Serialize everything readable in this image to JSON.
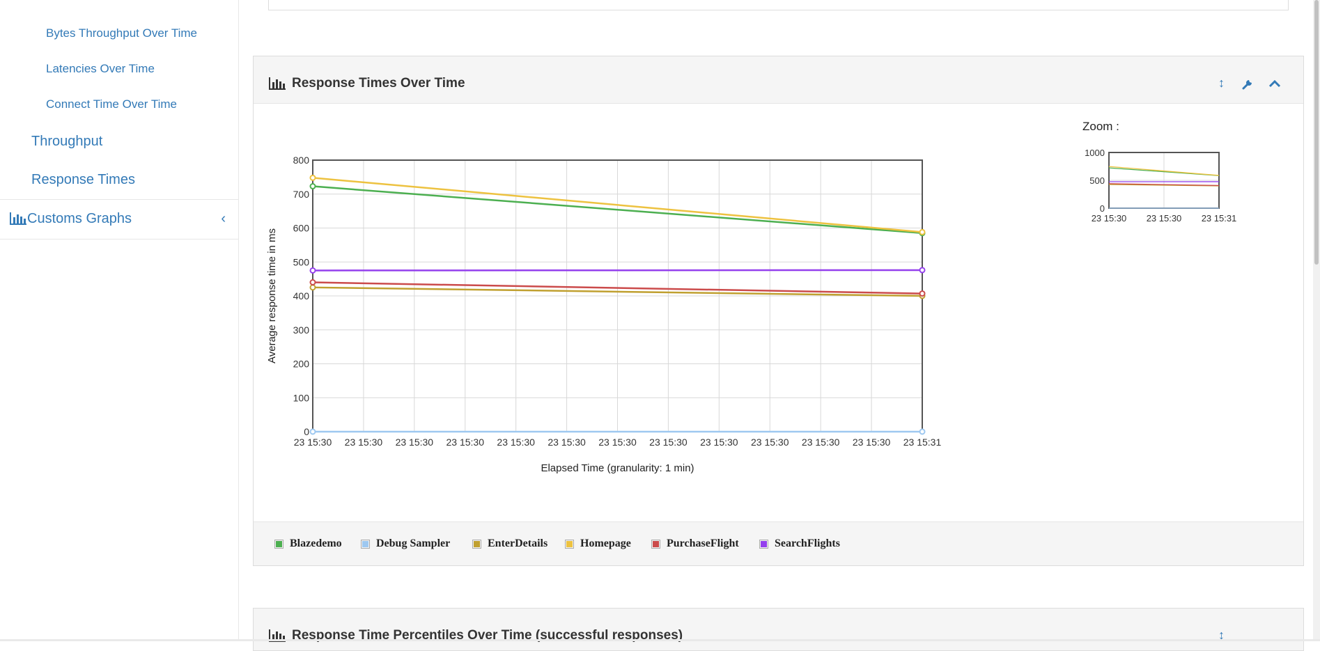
{
  "sidebar": {
    "sub_items": [
      "Bytes Throughput Over Time",
      "Latencies Over Time",
      "Connect Time Over Time"
    ],
    "items": [
      "Throughput",
      "Response Times"
    ],
    "custom": {
      "label": "Customs Graphs",
      "icon": "bar-chart-icon",
      "chevron": "‹"
    }
  },
  "panel": {
    "title": "Response Times Over Time",
    "tools": {
      "expand": "↕",
      "settings": "wrench-icon",
      "collapse": "chevron-up-icon"
    }
  },
  "panel2": {
    "title": "Response Time Percentiles Over Time (successful responses)"
  },
  "colors": {
    "link": "#337ab7",
    "Blazedemo": "#4caf50",
    "Debug Sampler": "#9ec8f0",
    "EnterDetails": "#c0a030",
    "Homepage": "#edc240",
    "PurchaseFlight": "#cb4b4b",
    "SearchFlights": "#9440ed"
  },
  "chart_data": {
    "type": "line",
    "xlabel": "Elapsed Time (granularity: 1 min)",
    "ylabel": "Average response time in ms",
    "ylim": [
      0,
      800
    ],
    "y_ticks": [
      0,
      100,
      200,
      300,
      400,
      500,
      600,
      700,
      800
    ],
    "x_tick_labels": [
      "23 15:30",
      "23 15:30",
      "23 15:30",
      "23 15:30",
      "23 15:30",
      "23 15:30",
      "23 15:30",
      "23 15:30",
      "23 15:30",
      "23 15:30",
      "23 15:30",
      "23 15:30",
      "23 15:31"
    ],
    "x": [
      "23 15:30",
      "23 15:31"
    ],
    "series": [
      {
        "name": "Blazedemo",
        "values": [
          723,
          585
        ]
      },
      {
        "name": "Debug Sampler",
        "values": [
          0,
          0
        ]
      },
      {
        "name": "EnterDetails",
        "values": [
          425,
          400
        ]
      },
      {
        "name": "Homepage",
        "values": [
          748,
          588
        ]
      },
      {
        "name": "PurchaseFlight",
        "values": [
          440,
          407
        ]
      },
      {
        "name": "SearchFlights",
        "values": [
          475,
          476
        ]
      }
    ],
    "legend_position": "bottom",
    "grid": true,
    "zoom": {
      "title": "Zoom :",
      "ylim": [
        0,
        1000
      ],
      "y_ticks": [
        0,
        500,
        1000
      ],
      "x_tick_labels": [
        "23 15:30",
        "23 15:30",
        "23 15:31"
      ]
    }
  }
}
